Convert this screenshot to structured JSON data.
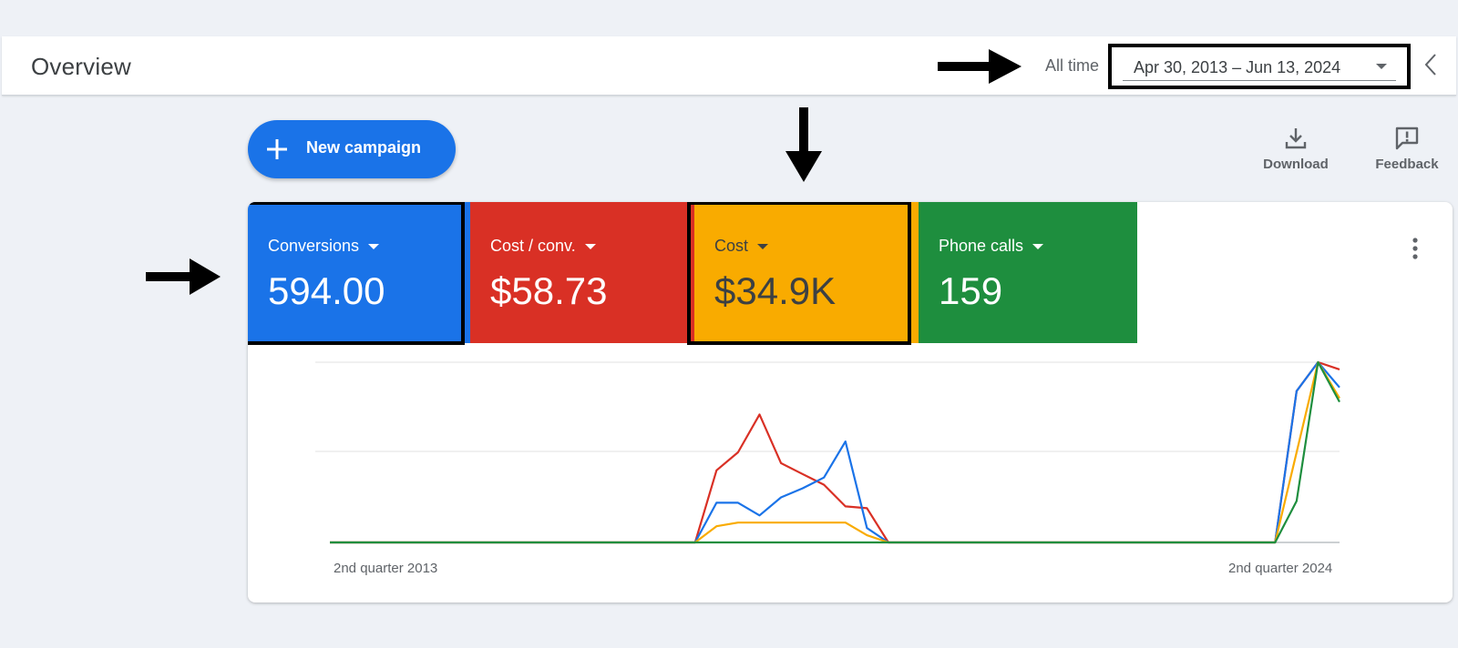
{
  "header": {
    "title": "Overview",
    "range_label": "All time",
    "date_range": "Apr 30, 2013 – Jun 13, 2024"
  },
  "toolbar": {
    "new_campaign": "New campaign",
    "download": "Download",
    "feedback": "Feedback"
  },
  "metrics": [
    {
      "label": "Conversions",
      "value": "594.00",
      "color": "#1a73e8"
    },
    {
      "label": "Cost / conv.",
      "value": "$58.73",
      "color": "#d93025"
    },
    {
      "label": "Cost",
      "value": "$34.9K",
      "color": "#f9ab00"
    },
    {
      "label": "Phone calls",
      "value": "159",
      "color": "#1e8e3e"
    }
  ],
  "chart_data": {
    "type": "line",
    "x_tick_labels": [
      "2nd quarter 2013",
      "2nd quarter 2024"
    ],
    "ylim": [
      0,
      1
    ],
    "grid": true,
    "series": [
      {
        "name": "Cost / conv.",
        "color": "#d93025",
        "values": [
          0,
          0,
          0,
          0,
          0,
          0,
          0,
          0,
          0,
          0,
          0,
          0,
          0,
          0,
          0,
          0,
          0,
          0,
          0.4,
          0.5,
          0.71,
          0.44,
          0.38,
          0.32,
          0.2,
          0.19,
          0,
          0,
          0,
          0,
          0,
          0,
          0,
          0,
          0,
          0,
          0,
          0,
          0,
          0,
          0,
          0,
          0,
          0,
          0,
          0.84,
          1,
          0.96
        ]
      },
      {
        "name": "Conversions",
        "color": "#1a73e8",
        "values": [
          0,
          0,
          0,
          0,
          0,
          0,
          0,
          0,
          0,
          0,
          0,
          0,
          0,
          0,
          0,
          0,
          0,
          0,
          0.22,
          0.22,
          0.15,
          0.25,
          0.3,
          0.36,
          0.56,
          0.08,
          0,
          0,
          0,
          0,
          0,
          0,
          0,
          0,
          0,
          0,
          0,
          0,
          0,
          0,
          0,
          0,
          0,
          0,
          0,
          0.84,
          1,
          0.86
        ]
      },
      {
        "name": "Cost",
        "color": "#f9ab00",
        "values": [
          0,
          0,
          0,
          0,
          0,
          0,
          0,
          0,
          0,
          0,
          0,
          0,
          0,
          0,
          0,
          0,
          0,
          0,
          0.09,
          0.11,
          0.11,
          0.11,
          0.11,
          0.11,
          0.11,
          0.04,
          0,
          0,
          0,
          0,
          0,
          0,
          0,
          0,
          0,
          0,
          0,
          0,
          0,
          0,
          0,
          0,
          0,
          0,
          0,
          0.5,
          1,
          0.8
        ]
      },
      {
        "name": "Phone calls",
        "color": "#1e8e3e",
        "values": [
          0,
          0,
          0,
          0,
          0,
          0,
          0,
          0,
          0,
          0,
          0,
          0,
          0,
          0,
          0,
          0,
          0,
          0,
          0,
          0,
          0,
          0,
          0,
          0,
          0,
          0,
          0,
          0,
          0,
          0,
          0,
          0,
          0,
          0,
          0,
          0,
          0,
          0,
          0,
          0,
          0,
          0,
          0,
          0,
          0,
          0.23,
          1,
          0.78
        ]
      }
    ]
  }
}
